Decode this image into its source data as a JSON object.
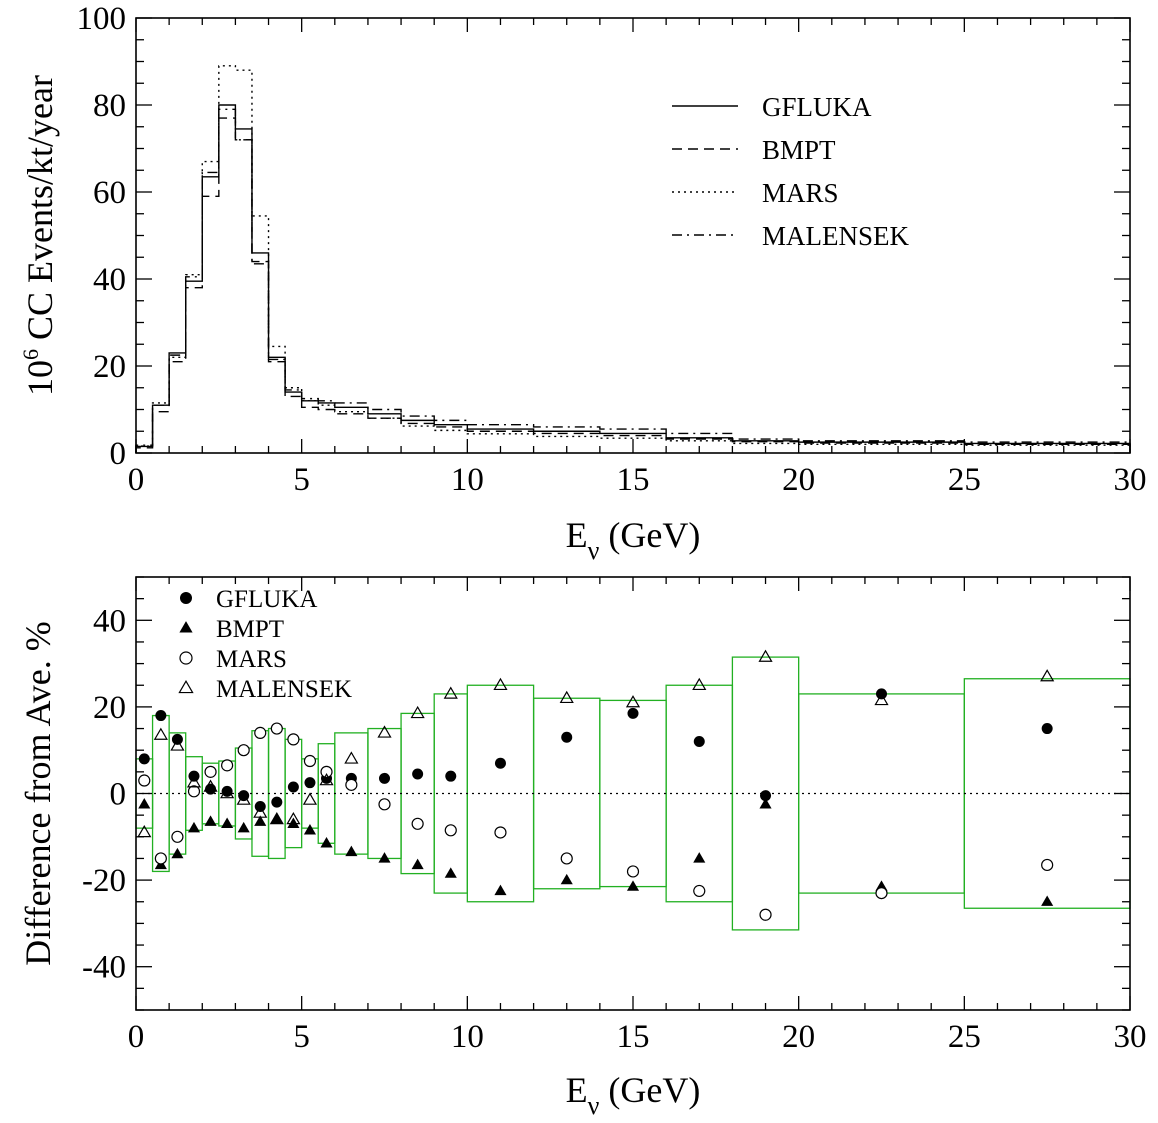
{
  "chart_data": [
    {
      "type": "line",
      "ylabel": {
        "base": "10",
        "sup": "6",
        "rest": " CC Events/kt/year"
      },
      "xlabel": {
        "main": "E",
        "sub": "ν",
        "rest": " (GeV)"
      },
      "xlim": [
        0,
        30
      ],
      "ylim": [
        0,
        100
      ],
      "xticks": [
        "0",
        "5",
        "10",
        "15",
        "20",
        "25",
        "30"
      ],
      "yticks": [
        "0",
        "20",
        "40",
        "60",
        "80",
        "100"
      ],
      "legend_position": "top-right",
      "bin_edges": [
        0,
        0.5,
        1,
        1.5,
        2,
        2.5,
        3,
        3.5,
        4,
        4.5,
        5,
        5.5,
        6,
        7,
        8,
        9,
        10,
        12,
        14,
        16,
        18,
        20,
        25,
        30
      ],
      "series": [
        {
          "name": "GFLUKA",
          "style": "solid",
          "values": [
            1.5,
            11,
            23,
            39.5,
            63.5,
            80,
            74.5,
            46,
            22,
            14,
            12,
            11.5,
            10.5,
            9,
            7.5,
            6.5,
            5.5,
            5,
            4.5,
            3.5,
            2.8,
            2.5,
            2.2
          ]
        },
        {
          "name": "BMPT",
          "style": "dashed",
          "values": [
            1.2,
            9.5,
            21,
            38,
            59,
            77,
            72,
            44,
            21,
            13,
            10.5,
            10,
            9,
            8,
            6.8,
            6,
            5,
            4.5,
            4,
            3.2,
            2.6,
            2.3,
            2
          ]
        },
        {
          "name": "MARS",
          "style": "dotted",
          "values": [
            1.6,
            11.5,
            22,
            41,
            67,
            89,
            88,
            54.5,
            24.5,
            15,
            12,
            11,
            9.5,
            8,
            6.2,
            5.2,
            4.4,
            3.8,
            3.4,
            2.8,
            2.2,
            2,
            1.8
          ]
        },
        {
          "name": "MALENSEK",
          "style": "dashdot",
          "values": [
            1.8,
            11,
            22.5,
            40.5,
            64.5,
            79,
            72,
            43.5,
            21.5,
            14.5,
            12.5,
            12,
            11.5,
            10,
            8.5,
            7.5,
            6.5,
            6,
            5.5,
            4.5,
            3.2,
            2.8,
            2.5
          ]
        }
      ]
    },
    {
      "type": "scatter",
      "ylabel": "Difference from Ave. %",
      "xlabel": {
        "main": "E",
        "sub": "ν",
        "rest": " (GeV)"
      },
      "xlim": [
        0,
        30
      ],
      "ylim": [
        -50,
        50
      ],
      "xticks": [
        "0",
        "5",
        "10",
        "15",
        "20",
        "25",
        "30"
      ],
      "yticks": [
        "-40",
        "-20",
        "0",
        "20",
        "40"
      ],
      "legend_position": "top-left",
      "zero_line": true,
      "box_color": "#22b022",
      "bins": [
        {
          "x0": 0,
          "x1": 0.5,
          "half": 8
        },
        {
          "x0": 0.5,
          "x1": 1,
          "half": 18
        },
        {
          "x0": 1,
          "x1": 1.5,
          "half": 14
        },
        {
          "x0": 1.5,
          "x1": 2,
          "half": 8.5
        },
        {
          "x0": 2,
          "x1": 2.5,
          "half": 7
        },
        {
          "x0": 2.5,
          "x1": 3,
          "half": 7.5
        },
        {
          "x0": 3,
          "x1": 3.5,
          "half": 10.5
        },
        {
          "x0": 3.5,
          "x1": 4,
          "half": 14.5
        },
        {
          "x0": 4,
          "x1": 4.5,
          "half": 15
        },
        {
          "x0": 4.5,
          "x1": 5,
          "half": 12.5
        },
        {
          "x0": 5,
          "x1": 5.5,
          "half": 8
        },
        {
          "x0": 5.5,
          "x1": 6,
          "half": 11.5
        },
        {
          "x0": 6,
          "x1": 7,
          "half": 14
        },
        {
          "x0": 7,
          "x1": 8,
          "half": 15
        },
        {
          "x0": 8,
          "x1": 9,
          "half": 18.5
        },
        {
          "x0": 9,
          "x1": 10,
          "half": 23
        },
        {
          "x0": 10,
          "x1": 12,
          "half": 25
        },
        {
          "x0": 12,
          "x1": 14,
          "half": 22
        },
        {
          "x0": 14,
          "x1": 16,
          "half": 21.5
        },
        {
          "x0": 16,
          "x1": 18,
          "half": 25
        },
        {
          "x0": 18,
          "x1": 20,
          "half": 31.5
        },
        {
          "x0": 20,
          "x1": 25,
          "half": 23
        },
        {
          "x0": 25,
          "x1": 30,
          "half": 26.5
        }
      ],
      "x": [
        0.25,
        0.75,
        1.25,
        1.75,
        2.25,
        2.75,
        3.25,
        3.75,
        4.25,
        4.75,
        5.25,
        5.75,
        6.5,
        7.5,
        8.5,
        9.5,
        11,
        13,
        15,
        17,
        19,
        22.5,
        27.5
      ],
      "series": [
        {
          "name": "GFLUKA",
          "marker": "filled-circle",
          "values": [
            8,
            18,
            12.5,
            4,
            1,
            0.5,
            -0.5,
            -3,
            -2,
            1.5,
            2.5,
            3.5,
            3.5,
            3.5,
            4.5,
            4,
            7,
            13,
            18.5,
            12,
            -0.5,
            23,
            15
          ]
        },
        {
          "name": "BMPT",
          "marker": "filled-triangle",
          "values": [
            -2.5,
            -16.5,
            -14,
            -8,
            -6.5,
            -7,
            -8,
            -6.5,
            -6,
            -7,
            -8.5,
            -11.5,
            -13.5,
            -15,
            -16.5,
            -18.5,
            -22.5,
            -20,
            -21.5,
            -15,
            -2.5,
            -21.5,
            -25
          ]
        },
        {
          "name": "MARS",
          "marker": "open-circle",
          "values": [
            3,
            -15,
            -10,
            0.5,
            5,
            6.5,
            10,
            14,
            15,
            12.5,
            7.5,
            5,
            2,
            -2.5,
            -7,
            -8.5,
            -9,
            -15,
            -18,
            -22.5,
            -28,
            -23,
            -16.5
          ]
        },
        {
          "name": "MALENSEK",
          "marker": "open-triangle",
          "values": [
            -9,
            13.5,
            11,
            2.5,
            1.5,
            0,
            -1.5,
            -4.5,
            -6,
            -6,
            -1.5,
            3,
            8,
            14,
            18.5,
            23,
            25,
            22,
            21,
            25,
            31.5,
            21.5,
            27
          ]
        }
      ]
    }
  ]
}
